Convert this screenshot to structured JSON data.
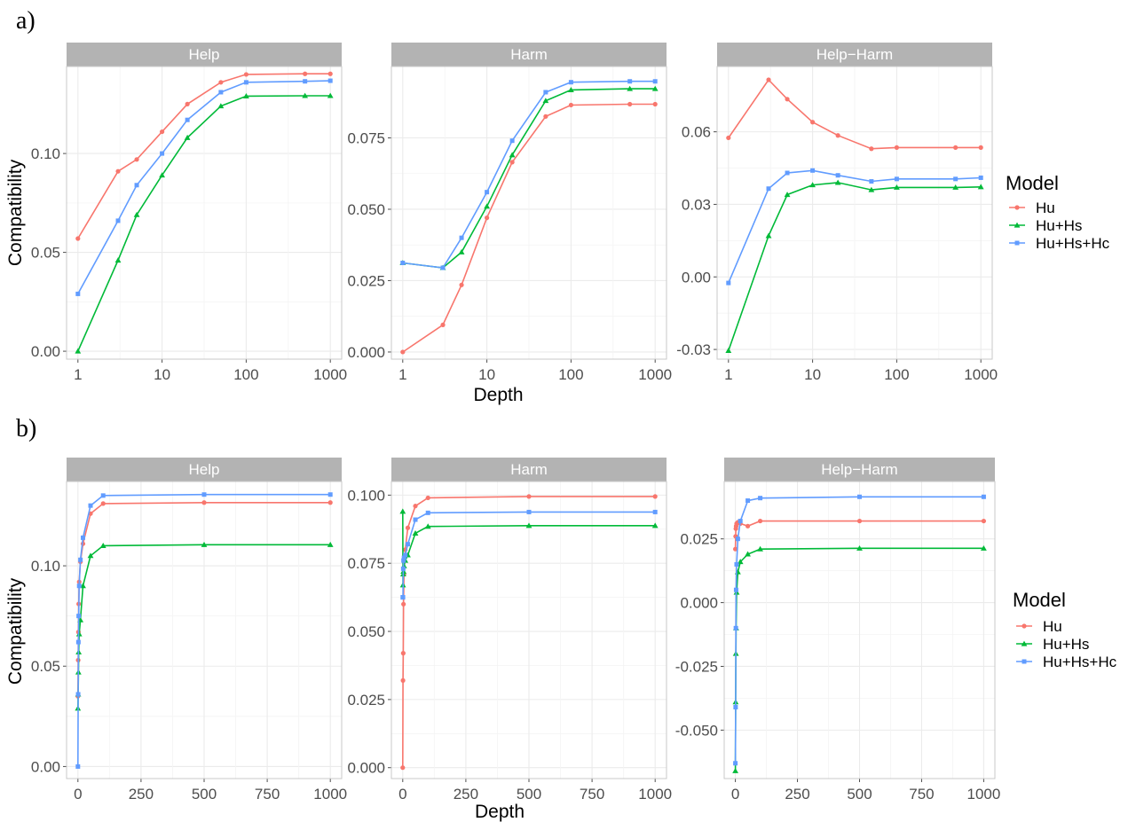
{
  "colors": {
    "Hu": "#F8766D",
    "Hu+Hs": "#00BA38",
    "Hu+Hs+Hc": "#619CFF"
  },
  "chart_data": [
    {
      "panel": "a)",
      "type": "line",
      "xscale": "log10",
      "xlabel": "Depth",
      "ylabel": "Compatibility",
      "legend_title": "Model",
      "legend_position": "right",
      "grid": true,
      "xticks": [
        1,
        10,
        100,
        1000
      ],
      "x": [
        1,
        3,
        5,
        10,
        20,
        50,
        100,
        500,
        1000
      ],
      "facets": [
        {
          "title": "Help",
          "ylim": [
            -0.004,
            0.144
          ],
          "yticks": [
            0.0,
            0.05,
            0.1
          ],
          "ytick_labels": [
            "0.00",
            "0.05",
            "0.10"
          ],
          "series": [
            {
              "name": "Hu",
              "values": [
                0.057,
                0.091,
                0.097,
                0.111,
                0.125,
                0.136,
                0.14,
                0.1403,
                0.1403
              ]
            },
            {
              "name": "Hu+Hs",
              "values": [
                0.0,
                0.046,
                0.069,
                0.089,
                0.108,
                0.124,
                0.129,
                0.1292,
                0.1292
              ]
            },
            {
              "name": "Hu+Hs+Hc",
              "values": [
                0.029,
                0.066,
                0.084,
                0.1,
                0.117,
                0.131,
                0.136,
                0.1365,
                0.1368
              ]
            }
          ]
        },
        {
          "title": "Harm",
          "ylim": [
            -0.0025,
            0.1
          ],
          "yticks": [
            0.0,
            0.025,
            0.05,
            0.075
          ],
          "ytick_labels": [
            "0.000",
            "0.025",
            "0.050",
            "0.075"
          ],
          "series": [
            {
              "name": "Hu",
              "values": [
                0.0,
                0.0095,
                0.0235,
                0.047,
                0.0665,
                0.0825,
                0.0865,
                0.0868,
                0.0868
              ]
            },
            {
              "name": "Hu+Hs",
              "values": [
                0.0312,
                0.0295,
                0.035,
                0.051,
                0.069,
                0.088,
                0.0918,
                0.0922,
                0.0922
              ]
            },
            {
              "name": "Hu+Hs+Hc",
              "values": [
                0.0312,
                0.0295,
                0.04,
                0.056,
                0.074,
                0.091,
                0.0945,
                0.0948,
                0.0948
              ]
            }
          ]
        },
        {
          "title": "Help−Harm",
          "ylim": [
            -0.034,
            0.087
          ],
          "yticks": [
            -0.03,
            0.0,
            0.03,
            0.06
          ],
          "ytick_labels": [
            "-0.03",
            "0.00",
            "0.03",
            "0.06"
          ],
          "series": [
            {
              "name": "Hu",
              "values": [
                0.0575,
                0.0815,
                0.0735,
                0.064,
                0.0585,
                0.053,
                0.0535,
                0.0535,
                0.0535
              ]
            },
            {
              "name": "Hu+Hs",
              "values": [
                -0.0305,
                0.017,
                0.034,
                0.038,
                0.039,
                0.036,
                0.037,
                0.037,
                0.0372
              ]
            },
            {
              "name": "Hu+Hs+Hc",
              "values": [
                -0.0025,
                0.0365,
                0.043,
                0.044,
                0.042,
                0.0395,
                0.0405,
                0.0405,
                0.041
              ]
            }
          ]
        }
      ]
    },
    {
      "panel": "b)",
      "type": "line",
      "xscale": "linear",
      "xlabel": "Depth",
      "ylabel": "Compatibility",
      "legend_title": "Model",
      "legend_position": "right",
      "grid": true,
      "xticks": [
        0,
        250,
        500,
        750,
        1000
      ],
      "x": [
        0,
        1,
        2,
        3,
        5,
        10,
        20,
        50,
        100,
        500,
        1000
      ],
      "facets": [
        {
          "title": "Help",
          "ylim": [
            -0.006,
            0.142
          ],
          "yticks": [
            0.0,
            0.05,
            0.1
          ],
          "ytick_labels": [
            "0.00",
            "0.05",
            "0.10"
          ],
          "series": [
            {
              "name": "Hu",
              "values": [
                0.035,
                0.053,
                0.067,
                0.081,
                0.092,
                0.102,
                0.111,
                0.126,
                0.131,
                0.1315,
                0.1315
              ]
            },
            {
              "name": "Hu+Hs",
              "values": [
                0.029,
                0.036,
                0.047,
                0.057,
                0.066,
                0.073,
                0.09,
                0.105,
                0.11,
                0.1105,
                0.1105
              ]
            },
            {
              "name": "Hu+Hs+Hc",
              "values": [
                0.0,
                0.036,
                0.062,
                0.075,
                0.09,
                0.103,
                0.114,
                0.13,
                0.135,
                0.1355,
                0.1355
              ]
            }
          ]
        },
        {
          "title": "Harm",
          "ylim": [
            -0.004,
            0.105
          ],
          "yticks": [
            0.0,
            0.025,
            0.05,
            0.075,
            0.1
          ],
          "ytick_labels": [
            "0.000",
            "0.025",
            "0.050",
            "0.075",
            "0.100"
          ],
          "series": [
            {
              "name": "Hu",
              "values": [
                0.0,
                0.032,
                0.042,
                0.06,
                0.071,
                0.08,
                0.088,
                0.096,
                0.099,
                0.0995,
                0.0995
              ]
            },
            {
              "name": "Hu+Hs",
              "values": [
                0.094,
                0.067,
                0.071,
                0.072,
                0.074,
                0.076,
                0.078,
                0.086,
                0.0885,
                0.0888,
                0.0888
              ]
            },
            {
              "name": "Hu+Hs+Hc",
              "values": [
                0.0625,
                0.0625,
                0.073,
                0.076,
                0.077,
                0.078,
                0.082,
                0.091,
                0.0935,
                0.0938,
                0.0938
              ]
            }
          ]
        },
        {
          "title": "Help−Harm",
          "ylim": [
            -0.069,
            0.0475
          ],
          "yticks": [
            -0.05,
            -0.025,
            0.0,
            0.025
          ],
          "ytick_labels": [
            "-0.050",
            "-0.025",
            "0.000",
            "0.025"
          ],
          "series": [
            {
              "name": "Hu",
              "values": [
                0.021,
                0.026,
                0.029,
                0.03,
                0.031,
                0.0315,
                0.031,
                0.03,
                0.032,
                0.032,
                0.032
              ]
            },
            {
              "name": "Hu+Hs",
              "values": [
                -0.066,
                -0.039,
                -0.02,
                -0.01,
                0.004,
                0.012,
                0.016,
                0.019,
                0.021,
                0.0213,
                0.0213
              ]
            },
            {
              "name": "Hu+Hs+Hc",
              "values": [
                -0.063,
                -0.041,
                -0.01,
                0.005,
                0.015,
                0.025,
                0.032,
                0.04,
                0.041,
                0.0415,
                0.0415
              ]
            }
          ]
        }
      ]
    }
  ]
}
